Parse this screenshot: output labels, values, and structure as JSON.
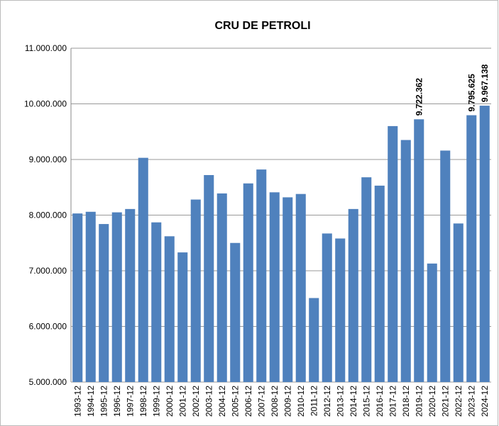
{
  "chart_data": {
    "type": "bar",
    "title": "CRU DE PETROLI",
    "categories": [
      "1993-12",
      "1994-12",
      "1995-12",
      "1996-12",
      "1997-12",
      "1998-12",
      "1999-12",
      "2000-12",
      "2001-12",
      "2002-12",
      "2003-12",
      "2004-12",
      "2005-12",
      "2006-12",
      "2007-12",
      "2008-12",
      "2009-12",
      "2010-12",
      "2011-12",
      "2012-12",
      "2013-12",
      "2014-12",
      "2015-12",
      "2016-12",
      "2017-12",
      "2018-12",
      "2019-12",
      "2020-12",
      "2021-12",
      "2022-12",
      "2023-12",
      "2024-12"
    ],
    "values": [
      8030000,
      8060000,
      7840000,
      8050000,
      8110000,
      9030000,
      7870000,
      7620000,
      7330000,
      8280000,
      8720000,
      8390000,
      7500000,
      8570000,
      8820000,
      8410000,
      8320000,
      8380000,
      6510000,
      7670000,
      7580000,
      8110000,
      8680000,
      8530000,
      9600000,
      9350000,
      9722362,
      7130000,
      9160000,
      7850000,
      9795625,
      9967138
    ],
    "value_labels": [
      null,
      null,
      null,
      null,
      null,
      null,
      null,
      null,
      null,
      null,
      null,
      null,
      null,
      null,
      null,
      null,
      null,
      null,
      null,
      null,
      null,
      null,
      null,
      null,
      null,
      null,
      "9.722.362",
      null,
      null,
      null,
      "9.795.625",
      "9.967.138"
    ],
    "color": "#4f81bd",
    "ylim": [
      5000000,
      11000000
    ],
    "yticks": [
      {
        "value": 5000000,
        "label": "5.000.000"
      },
      {
        "value": 6000000,
        "label": "6.000.000"
      },
      {
        "value": 7000000,
        "label": "7.000.000"
      },
      {
        "value": 8000000,
        "label": "8.000.000"
      },
      {
        "value": 9000000,
        "label": "9.000.000"
      },
      {
        "value": 10000000,
        "label": "10.000.000"
      },
      {
        "value": 11000000,
        "label": "11.000.000"
      }
    ],
    "grid": true
  }
}
